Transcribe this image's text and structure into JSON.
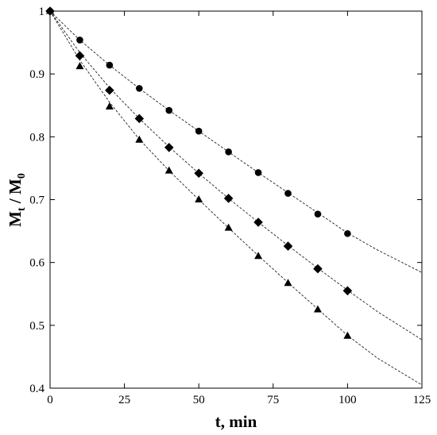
{
  "chart_data": {
    "type": "scatter",
    "xlabel": "t, min",
    "ylabel_main": "M",
    "ylabel_sub1": "t",
    "ylabel_sep": " / M",
    "ylabel_sub2": "0",
    "xlim": [
      0,
      125
    ],
    "ylim": [
      0.4,
      1.0
    ],
    "xticks": [
      0,
      25,
      50,
      75,
      100,
      125
    ],
    "yticks": [
      0.4,
      0.5,
      0.6,
      0.7,
      0.8,
      0.9,
      1.0
    ],
    "xtick_labels": [
      "0",
      "25",
      "50",
      "75",
      "100",
      "125"
    ],
    "ytick_labels": [
      "0.4",
      "0.5",
      "0.6",
      "0.7",
      "0.8",
      "0.9",
      "1"
    ],
    "grid": false,
    "series": [
      {
        "marker": "circle",
        "x": [
          0,
          10,
          20,
          30,
          40,
          50,
          60,
          70,
          80,
          90,
          100
        ],
        "y": [
          1.0,
          0.954,
          0.914,
          0.877,
          0.842,
          0.809,
          0.776,
          0.743,
          0.71,
          0.677,
          0.646
        ],
        "fit_x": [
          0,
          10,
          20,
          30,
          40,
          50,
          60,
          70,
          80,
          90,
          100,
          110,
          125
        ],
        "fit_y": [
          1.0,
          0.954,
          0.914,
          0.877,
          0.842,
          0.809,
          0.776,
          0.743,
          0.711,
          0.679,
          0.647,
          0.62,
          0.584
        ]
      },
      {
        "marker": "diamond",
        "x": [
          0,
          10,
          20,
          30,
          40,
          50,
          60,
          70,
          80,
          90,
          100
        ],
        "y": [
          1.0,
          0.929,
          0.874,
          0.829,
          0.783,
          0.742,
          0.702,
          0.664,
          0.626,
          0.59,
          0.555
        ],
        "fit_x": [
          0,
          10,
          20,
          30,
          40,
          50,
          60,
          70,
          80,
          90,
          100,
          110,
          125
        ],
        "fit_y": [
          1.0,
          0.934,
          0.878,
          0.829,
          0.784,
          0.742,
          0.702,
          0.664,
          0.627,
          0.591,
          0.556,
          0.522,
          0.477
        ]
      },
      {
        "marker": "triangle",
        "x": [
          0,
          10,
          20,
          30,
          40,
          50,
          60,
          70,
          80,
          90,
          100
        ],
        "y": [
          1.0,
          0.912,
          0.848,
          0.795,
          0.746,
          0.7,
          0.655,
          0.61,
          0.567,
          0.525,
          0.483
        ],
        "fit_x": [
          0,
          10,
          20,
          30,
          40,
          50,
          60,
          70,
          80,
          90,
          100,
          110,
          125
        ],
        "fit_y": [
          1.0,
          0.922,
          0.855,
          0.796,
          0.746,
          0.7,
          0.655,
          0.611,
          0.568,
          0.526,
          0.484,
          0.448,
          0.405
        ]
      }
    ]
  }
}
